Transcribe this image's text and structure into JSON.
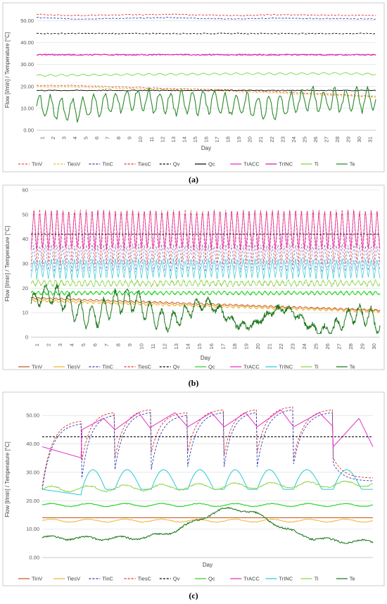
{
  "chart_data": [
    {
      "type": "line",
      "caption": "(a)",
      "xlabel": "Day",
      "ylabel": "Flow [l/min] / Temperature [°C]",
      "ylim": [
        0,
        55
      ],
      "ytick_labels": [
        "0.00",
        "10.00",
        "20.00",
        "30.00",
        "40.00",
        "50.00"
      ],
      "ytick_values": [
        0,
        10,
        20,
        30,
        40,
        50
      ],
      "x_tick_labels": [
        "1",
        "2",
        "3",
        "4",
        "5",
        "6",
        "7",
        "8",
        "9",
        "10",
        "11",
        "12",
        "13",
        "14",
        "15",
        "16",
        "17",
        "18",
        "19",
        "20",
        "21",
        "22",
        "23",
        "24",
        "25",
        "26",
        "27",
        "28",
        "29",
        "30",
        "31"
      ],
      "series": [
        {
          "name": "TinV",
          "color": "#d9602a",
          "dash": "dashed",
          "base": [
            20.5,
            20.5,
            20.0,
            19.5,
            19.0,
            18.8,
            18.2,
            17.5,
            17.0,
            16.3,
            15.5
          ]
        },
        {
          "name": "TiesV",
          "color": "#f2b134",
          "dash": "dashed",
          "base": [
            19.8,
            19.8,
            19.3,
            19.0,
            18.5,
            18.2,
            17.6,
            17.0,
            16.4,
            15.8,
            15.0
          ]
        },
        {
          "name": "TinC",
          "color": "#2e3fb8",
          "dash": "dashed",
          "base": [
            51.5,
            50.8,
            51.0,
            51.2,
            51.5,
            51.0,
            50.8,
            51.2,
            51.0,
            51.0,
            50.8
          ]
        },
        {
          "name": "TiesC",
          "color": "#e32d2d",
          "dash": "dashed",
          "base": [
            53.0,
            52.4,
            52.6,
            52.8,
            53.0,
            52.6,
            52.4,
            52.8,
            52.6,
            52.6,
            52.4
          ]
        },
        {
          "name": "Qv",
          "color": "#000000",
          "dash": "dashed",
          "base": [
            44.2,
            44.2,
            44.2,
            44.2,
            44.2,
            44.2,
            44.2,
            44.2,
            44.2,
            44.2,
            44.2
          ]
        },
        {
          "name": "Qc",
          "color": "#000000",
          "dash": "solid",
          "base": [
            18.2,
            18.2,
            18.2,
            18.2,
            18.2,
            18.2,
            18.2,
            18.2,
            18.2,
            18.2,
            18.2
          ]
        },
        {
          "name": "TrACC",
          "color": "#e332c8",
          "dash": "solid",
          "base": [
            34.5,
            34.5,
            34.5,
            34.5,
            34.5,
            34.5,
            34.5,
            34.5,
            34.5,
            34.5,
            34.5
          ]
        },
        {
          "name": "TrINC",
          "color": "#d61f9e",
          "dash": "solid",
          "base": [
            34.5,
            34.5,
            34.5,
            34.5,
            34.5,
            34.5,
            34.5,
            34.5,
            34.5,
            34.5,
            34.5
          ]
        },
        {
          "name": "Ti",
          "color": "#7ad63f",
          "dash": "solid",
          "base": [
            25.0,
            25.2,
            25.3,
            25.5,
            25.6,
            25.7,
            25.8,
            25.8,
            25.9,
            26.0,
            25.6
          ]
        },
        {
          "name": "Te",
          "color": "#2a8a2a",
          "dash": "solid",
          "base": [
            11.0,
            9.0,
            12.0,
            14.0,
            12.0,
            13.0,
            11.5,
            10.0,
            14.0,
            13.5,
            14.0
          ]
        }
      ]
    },
    {
      "type": "line",
      "caption": "(b)",
      "xlabel": "Day",
      "ylabel": "Flow [l/min] / Temperature [°C]",
      "ylim": [
        0,
        60
      ],
      "ytick_labels": [
        "0",
        "10",
        "20",
        "30",
        "40",
        "50",
        "60"
      ],
      "ytick_values": [
        0,
        10,
        20,
        30,
        40,
        50,
        60
      ],
      "x_tick_labels": [
        "1",
        "2",
        "3",
        "4",
        "5",
        "6",
        "7",
        "8",
        "9",
        "10",
        "11",
        "12",
        "13",
        "14",
        "15",
        "16",
        "17",
        "18",
        "19",
        "20",
        "21",
        "22",
        "23",
        "24",
        "25",
        "26",
        "27",
        "28",
        "29",
        "30"
      ],
      "series": [
        {
          "name": "TinV",
          "color": "#c0581f",
          "dash": "solid"
        },
        {
          "name": "TiesV",
          "color": "#f2b134",
          "dash": "solid"
        },
        {
          "name": "TinC",
          "color": "#2e3fb8",
          "dash": "dashed"
        },
        {
          "name": "TiesC",
          "color": "#e32d2d",
          "dash": "dashed"
        },
        {
          "name": "Qv",
          "color": "#000000",
          "dash": "dashed"
        },
        {
          "name": "Qc",
          "color": "#1fd21f",
          "dash": "solid"
        },
        {
          "name": "TrACC",
          "color": "#e332c8",
          "dash": "solid"
        },
        {
          "name": "TrINC",
          "color": "#29c9d6",
          "dash": "solid"
        },
        {
          "name": "Ti",
          "color": "#8ad44a",
          "dash": "solid"
        },
        {
          "name": "Te",
          "color": "#1f7a1f",
          "dash": "solid"
        }
      ],
      "levels": {
        "TrACC_high": 51,
        "TrACC_low": 36,
        "TrINC_high": 32,
        "TrINC_low": 24,
        "Qv": 42,
        "Qc": 18,
        "TinV_start": 16,
        "TinV_end": 11,
        "Ti": 22
      }
    },
    {
      "type": "line",
      "caption": "(c)",
      "xlabel": "Day",
      "ylabel": "Flow [l/min] / Temperature [°C]",
      "ylim": [
        0,
        55
      ],
      "ytick_labels": [
        "0.00",
        "10.00",
        "20.00",
        "30.00",
        "40.00",
        "50.00"
      ],
      "ytick_values": [
        0,
        10,
        20,
        30,
        40,
        50
      ],
      "series": [
        {
          "name": "TinV",
          "color": "#c0581f",
          "dash": "solid"
        },
        {
          "name": "TiesV",
          "color": "#f2b134",
          "dash": "solid"
        },
        {
          "name": "TinC",
          "color": "#2e3fb8",
          "dash": "dashed"
        },
        {
          "name": "TiesC",
          "color": "#e32d2d",
          "dash": "dashed"
        },
        {
          "name": "Qv",
          "color": "#000000",
          "dash": "dashed"
        },
        {
          "name": "Qc",
          "color": "#1fd21f",
          "dash": "solid"
        },
        {
          "name": "TrACC",
          "color": "#e332c8",
          "dash": "solid"
        },
        {
          "name": "TrINC",
          "color": "#29c9d6",
          "dash": "solid"
        },
        {
          "name": "Ti",
          "color": "#8ad44a",
          "dash": "solid"
        },
        {
          "name": "Te",
          "color": "#1f7a1f",
          "dash": "solid"
        }
      ],
      "levels": {
        "Qv": 42.5,
        "TinV": 14,
        "TiesV": 13,
        "Qc": 18.5,
        "Ti_start": 24,
        "Ti_end": 26
      }
    }
  ]
}
